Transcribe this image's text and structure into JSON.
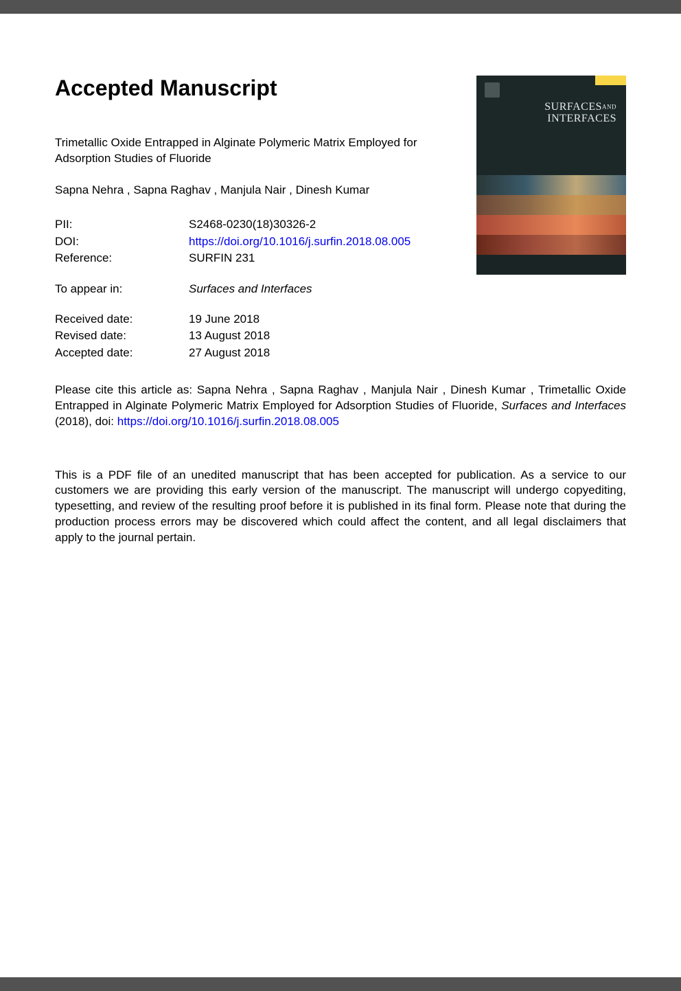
{
  "heading": "Accepted Manuscript",
  "title": "Trimetallic Oxide Entrapped in Alginate Polymeric Matrix Employed for Adsorption Studies of Fluoride",
  "authors": " Sapna Nehra ,  Sapna Raghav ,  Manjula Nair ,  Dinesh Kumar ",
  "meta": {
    "pii_label": "PII:",
    "pii_value": "S2468-0230(18)30326-2",
    "doi_label": "DOI:",
    "doi_value": "https://doi.org/10.1016/j.surfin.2018.08.005",
    "ref_label": "Reference:",
    "ref_value": "SURFIN 231"
  },
  "appear": {
    "label": "To appear in:",
    "value": "Surfaces and Interfaces"
  },
  "dates": {
    "received_label": "Received date:",
    "received_value": "19 June 2018",
    "revised_label": "Revised date:",
    "revised_value": "13 August 2018",
    "accepted_label": "Accepted date:",
    "accepted_value": "27 August 2018"
  },
  "citation": {
    "prefix": "Please cite this article as:  Sapna Nehra ,  Sapna Raghav ,  Manjula Nair ,  Dinesh Kumar , Trimetallic Oxide Entrapped in Alginate Polymeric Matrix Employed for Adsorption Studies of Fluoride, ",
    "journal": "Surfaces and Interfaces",
    "year_doi": " (2018), doi: ",
    "doi_link": "https://doi.org/10.1016/j.surfin.2018.08.005"
  },
  "disclaimer": "This is a PDF file of an unedited manuscript that has been accepted for publication. As a service to our customers we are providing this early version of the manuscript. The manuscript will undergo copyediting, typesetting, and review of the resulting proof before it is published in its final form. Please note that during the production process errors may be discovered which could affect the content, and all legal disclaimers that apply to the journal pertain.",
  "cover": {
    "journal_line1": "SURFACES",
    "journal_and": "AND",
    "journal_line2": "INTERFACES"
  },
  "colors": {
    "page_bg": "#ffffff",
    "body_bg": "#525252",
    "text": "#000000",
    "link": "#0000ee",
    "cover_dark": "#1c2828",
    "cover_yellow": "#f8d648",
    "cover_title": "#e8e8e8"
  },
  "typography": {
    "heading_size": 32,
    "body_size": 17,
    "font_family": "Arial, Helvetica, sans-serif"
  }
}
